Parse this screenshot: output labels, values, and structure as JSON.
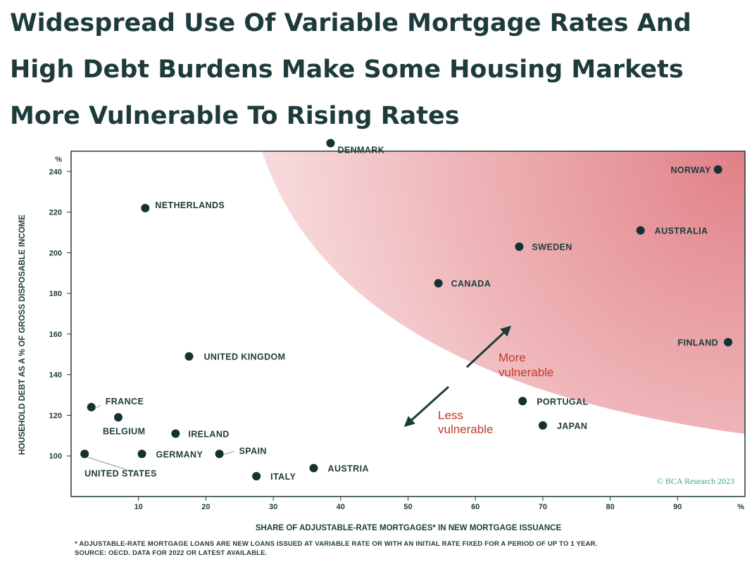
{
  "title": "Widespread Use Of Variable Mortgage Rates And High Debt Burdens Make Some Housing Markets More Vulnerable To Rising Rates",
  "footnote": "* ADJUSTABLE-RATE MORTGAGE LOANS ARE NEW LOANS ISSUED AT VARIABLE RATE OR WITH AN INITIAL RATE FIXED FOR A PERIOD OF UP TO 1 YEAR.",
  "source": "SOURCE: OECD. DATA FOR 2022 OR LATEST AVAILABLE.",
  "watermark": "© BCA Research 2023",
  "more_label": [
    "More",
    "vulnerable"
  ],
  "less_label": [
    "Less",
    "vulnerable"
  ],
  "colors": {
    "point": "#143232",
    "text": "#1d3b3a",
    "zone": "#e07f86",
    "annotation": "#c0392b",
    "watermark": "#3aa889"
  },
  "chart_data": {
    "type": "scatter",
    "xlabel": "SHARE OF ADJUSTABLE-RATE MORTGAGES* IN NEW MORTGAGE ISSUANCE",
    "ylabel": "HOUSEHOLD DEBT AS A % OF GROSS DISPOSABLE INCOME",
    "x_unit": "%",
    "y_unit": "%",
    "xlim": [
      0,
      100
    ],
    "ylim": [
      80,
      250
    ],
    "xticks": [
      10,
      20,
      30,
      40,
      50,
      60,
      70,
      80,
      90
    ],
    "yticks": [
      100,
      120,
      140,
      160,
      180,
      200,
      220,
      240
    ],
    "grid": false,
    "points": [
      {
        "label": "DENMARK",
        "x": 38.5,
        "y": 254
      },
      {
        "label": "NORWAY",
        "x": 96,
        "y": 241
      },
      {
        "label": "NETHERLANDS",
        "x": 11,
        "y": 222
      },
      {
        "label": "AUSTRALIA",
        "x": 84.5,
        "y": 211
      },
      {
        "label": "SWEDEN",
        "x": 66.5,
        "y": 203
      },
      {
        "label": "CANADA",
        "x": 54.5,
        "y": 185
      },
      {
        "label": "FINLAND",
        "x": 97.5,
        "y": 156
      },
      {
        "label": "UNITED KINGDOM",
        "x": 17.5,
        "y": 149
      },
      {
        "label": "PORTUGAL",
        "x": 67,
        "y": 127
      },
      {
        "label": "FRANCE",
        "x": 3,
        "y": 124
      },
      {
        "label": "BELGIUM",
        "x": 7,
        "y": 119
      },
      {
        "label": "JAPAN",
        "x": 70,
        "y": 115
      },
      {
        "label": "IRELAND",
        "x": 15.5,
        "y": 111
      },
      {
        "label": "GERMANY",
        "x": 10.5,
        "y": 101
      },
      {
        "label": "SPAIN",
        "x": 22,
        "y": 101
      },
      {
        "label": "UNITED STATES",
        "x": 2,
        "y": 101
      },
      {
        "label": "AUSTRIA",
        "x": 36,
        "y": 94
      },
      {
        "label": "ITALY",
        "x": 27.5,
        "y": 90
      }
    ]
  }
}
